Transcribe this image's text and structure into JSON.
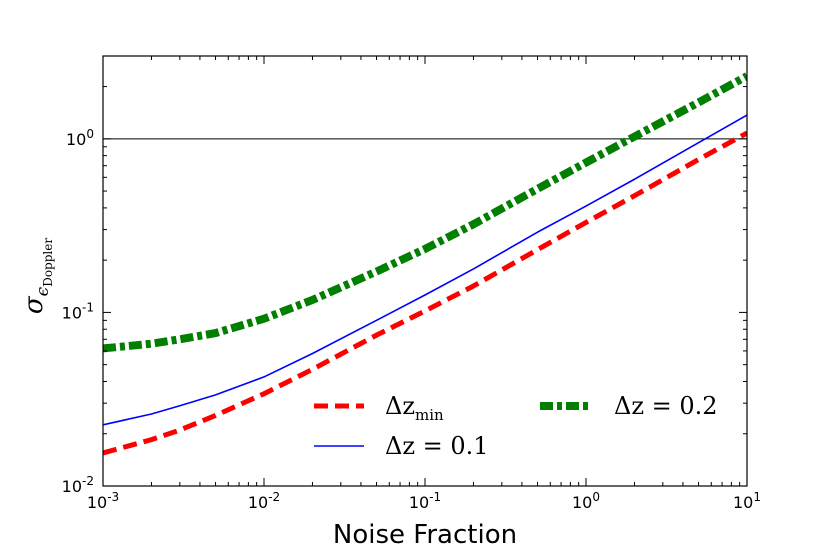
{
  "chart_data": {
    "type": "line",
    "title": "",
    "xlabel": "Noise Fraction",
    "ylabel": {
      "symbol": "σ",
      "sub_symbol": "ϵ",
      "sub_text": "Doppler"
    },
    "xscale": "log",
    "yscale": "log",
    "xlim": [
      0.001,
      10
    ],
    "ylim": [
      0.01,
      3
    ],
    "x_ticks": [
      {
        "value": 0.001,
        "base": "10",
        "exp": "-3"
      },
      {
        "value": 0.01,
        "base": "10",
        "exp": "-2"
      },
      {
        "value": 0.1,
        "base": "10",
        "exp": "-1"
      },
      {
        "value": 1,
        "base": "10",
        "exp": "0"
      },
      {
        "value": 10,
        "base": "10",
        "exp": "1"
      }
    ],
    "y_ticks": [
      {
        "value": 0.01,
        "base": "10",
        "exp": "-2"
      },
      {
        "value": 0.1,
        "base": "10",
        "exp": "-1"
      },
      {
        "value": 1,
        "base": "10",
        "exp": "0"
      }
    ],
    "reference_line": {
      "y": 1.0,
      "color": "#000000"
    },
    "x": [
      0.001,
      0.002,
      0.003,
      0.005,
      0.01,
      0.02,
      0.05,
      0.1,
      0.2,
      0.5,
      1,
      2,
      5,
      10
    ],
    "series": [
      {
        "name": "Δz_min",
        "label_main": "Δz",
        "label_sub": "min",
        "color": "#ff0000",
        "style": "dashed",
        "values": [
          0.0155,
          0.0185,
          0.021,
          0.0255,
          0.034,
          0.047,
          0.074,
          0.102,
          0.142,
          0.23,
          0.33,
          0.47,
          0.76,
          1.08
        ]
      },
      {
        "name": "Δz = 0.1",
        "label_main": "Δz = 0.1",
        "label_sub": "",
        "color": "#0000ff",
        "style": "solid",
        "values": [
          0.0225,
          0.026,
          0.029,
          0.0335,
          0.0425,
          0.058,
          0.09,
          0.126,
          0.178,
          0.29,
          0.41,
          0.585,
          0.95,
          1.37
        ]
      },
      {
        "name": "Δz = 0.2",
        "label_main": "Δz = 0.2",
        "label_sub": "",
        "color": "#007f00",
        "style": "dashdot",
        "values": [
          0.062,
          0.066,
          0.07,
          0.076,
          0.092,
          0.118,
          0.172,
          0.232,
          0.322,
          0.515,
          0.73,
          1.03,
          1.62,
          2.3
        ]
      }
    ],
    "legend": {
      "position": "lower-right",
      "columns": 2
    }
  }
}
